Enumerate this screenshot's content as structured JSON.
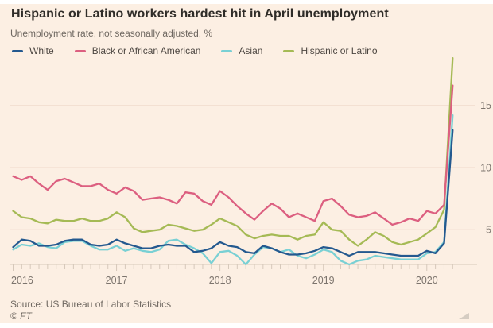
{
  "page": {
    "background": "#fcefe3"
  },
  "chart_data": {
    "type": "line",
    "title": "Hispanic or Latino workers hardest hit in April unemployment",
    "subtitle": "Unemployment rate, not seasonally adjusted, %",
    "source": "Source: US Bureau of Labor Statistics",
    "copyright": "© FT",
    "legend_position": "top",
    "grid": "horizontal",
    "x": {
      "frequency": "monthly",
      "start": "Jan 2016",
      "end": "Apr 2020",
      "year_tick_labels": [
        "2016",
        "2017",
        "2018",
        "2019",
        "2020"
      ],
      "year_tick_month_indices": [
        0,
        12,
        24,
        36,
        48
      ]
    },
    "y": {
      "ticks": [
        5,
        10,
        15
      ],
      "lim": [
        2.2,
        19.0
      ],
      "labels_side": "right"
    },
    "axis_colors": {
      "grid": "#f2ded0",
      "axis": "#d6c8ba",
      "tick_text": "#7c746d"
    },
    "series": [
      {
        "name": "White",
        "color": "#24598f",
        "values": [
          3.6,
          4.2,
          4.1,
          3.7,
          3.7,
          3.8,
          4.1,
          4.2,
          4.2,
          3.8,
          3.7,
          3.8,
          4.2,
          3.9,
          3.7,
          3.5,
          3.5,
          3.7,
          3.8,
          3.7,
          3.7,
          3.2,
          3.3,
          3.5,
          4.0,
          3.7,
          3.6,
          3.2,
          3.1,
          3.7,
          3.5,
          3.2,
          3.0,
          3.0,
          3.1,
          3.3,
          3.6,
          3.5,
          3.2,
          2.9,
          3.2,
          3.2,
          3.2,
          3.1,
          3.0,
          2.9,
          2.9,
          2.9,
          3.3,
          3.1,
          3.9,
          13.0
        ]
      },
      {
        "name": "Black or African American",
        "color": "#dc5f80",
        "values": [
          9.3,
          9.0,
          9.3,
          8.7,
          8.2,
          8.9,
          9.1,
          8.8,
          8.5,
          8.5,
          8.7,
          8.2,
          7.9,
          8.4,
          8.1,
          7.4,
          7.5,
          7.6,
          7.4,
          7.1,
          8.0,
          7.9,
          7.3,
          7.0,
          8.1,
          7.6,
          6.9,
          6.3,
          5.8,
          6.5,
          7.1,
          6.7,
          6.0,
          6.3,
          6.0,
          5.7,
          7.3,
          7.5,
          6.9,
          6.2,
          6.0,
          6.1,
          6.4,
          5.9,
          5.4,
          5.6,
          5.9,
          5.7,
          6.5,
          6.3,
          7.0,
          16.6
        ]
      },
      {
        "name": "Asian",
        "color": "#79d0d4",
        "values": [
          3.4,
          3.8,
          3.7,
          3.9,
          3.6,
          3.5,
          4.0,
          4.1,
          4.1,
          3.7,
          3.4,
          3.4,
          3.7,
          3.3,
          3.5,
          3.3,
          3.2,
          3.4,
          4.1,
          4.2,
          3.8,
          3.5,
          3.1,
          2.3,
          3.2,
          3.3,
          2.9,
          2.2,
          3.0,
          3.6,
          3.5,
          3.2,
          3.4,
          2.9,
          2.7,
          3.0,
          3.4,
          3.2,
          2.5,
          2.2,
          2.5,
          2.6,
          2.9,
          2.8,
          2.7,
          2.6,
          2.6,
          2.6,
          3.1,
          3.2,
          4.0,
          14.2
        ]
      },
      {
        "name": "Hispanic or Latino",
        "color": "#a5ba55",
        "values": [
          6.5,
          6.0,
          5.9,
          5.6,
          5.5,
          5.8,
          5.7,
          5.7,
          5.9,
          5.7,
          5.7,
          5.9,
          6.4,
          6.0,
          5.1,
          4.8,
          4.9,
          5.0,
          5.4,
          5.3,
          5.1,
          4.9,
          5.0,
          5.4,
          5.9,
          5.6,
          5.3,
          4.6,
          4.3,
          4.5,
          4.6,
          4.5,
          4.5,
          4.2,
          4.5,
          4.6,
          5.6,
          5.0,
          4.9,
          4.2,
          3.7,
          4.2,
          4.8,
          4.5,
          4.0,
          3.8,
          4.0,
          4.2,
          4.7,
          5.2,
          6.6,
          18.8
        ]
      }
    ]
  }
}
